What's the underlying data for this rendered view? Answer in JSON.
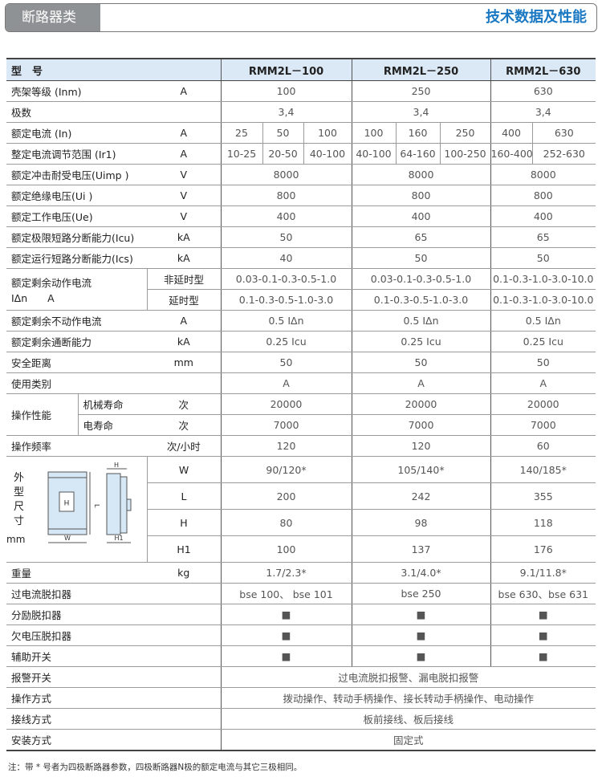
{
  "header": {
    "category": "断路器类",
    "title": "技术数据及性能"
  },
  "table": {
    "model_label": "型　号",
    "models": [
      "RMM2L－100",
      "RMM2L－250",
      "RMM2L－630"
    ],
    "rows": [
      {
        "label": "壳架等级 (Inm)",
        "unit": "A",
        "values": [
          "100",
          "250",
          "630"
        ]
      },
      {
        "label": "极数",
        "unit": "",
        "values": [
          "3,4",
          "3,4",
          "3,4"
        ]
      },
      {
        "label": "额定电流 (In)",
        "unit": "A",
        "values": [
          "25",
          "50",
          "100",
          "100",
          "160",
          "250",
          "400",
          "630"
        ]
      },
      {
        "label": "整定电流调节范围 (Ir1)",
        "unit": "A",
        "values": [
          "10-25",
          "20-50",
          "40-100",
          "40-100",
          "64-160",
          "100-250",
          "160-400",
          "252-630"
        ]
      },
      {
        "label": "额定冲击耐受电压(Uimp )",
        "unit": "V",
        "values": [
          "8000",
          "8000",
          "8000"
        ]
      },
      {
        "label": "额定绝缘电压(Ui )",
        "unit": "V",
        "values": [
          "800",
          "800",
          "800"
        ]
      },
      {
        "label": "额定工作电压(Ue)",
        "unit": "V",
        "values": [
          "400",
          "400",
          "400"
        ]
      },
      {
        "label": "额定极限短路分断能力(Icu)",
        "unit": "kA",
        "values": [
          "50",
          "65",
          "65"
        ]
      },
      {
        "label": "额定运行短路分断能力(Ics)",
        "unit": "kA",
        "values": [
          "40",
          "50",
          "50"
        ]
      },
      {
        "label": "额定剩余动作电流",
        "label2": "IΔn　　A",
        "sub": [
          {
            "label": "非延时型",
            "values": [
              "0.03-0.1-0.3-0.5-1.0",
              "0.03-0.1-0.3-0.5-1.0",
              "0.1-0.3-1.0-3.0-10.0"
            ]
          },
          {
            "label": "延时型",
            "values": [
              "0.1-0.3-0.5-1.0-3.0",
              "0.1-0.3-0.5-1.0-3.0",
              "0.1-0.3-1.0-3.0-10.0"
            ]
          }
        ]
      },
      {
        "label": "额定剩余不动作电流",
        "unit": "A",
        "values": [
          "0.5 IΔn",
          "0.5 IΔn",
          "0.5 IΔn"
        ]
      },
      {
        "label": "额定剩余通断能力",
        "unit": "kA",
        "values": [
          "0.25 Icu",
          "0.25 Icu",
          "0.25 Icu"
        ]
      },
      {
        "label": "安全距离",
        "unit": "mm",
        "values": [
          "50",
          "50",
          "50"
        ]
      },
      {
        "label": "使用类别",
        "unit": "",
        "values": [
          "A",
          "A",
          "A"
        ]
      },
      {
        "label": "操作性能",
        "life": [
          {
            "label": "机械寿命",
            "unit": "次",
            "values": [
              "20000",
              "20000",
              "20000"
            ]
          },
          {
            "label": "电寿命",
            "unit": "次",
            "values": [
              "7000",
              "7000",
              "7000"
            ]
          }
        ]
      },
      {
        "label": "操作频率",
        "unit": "次/小时",
        "values": [
          "120",
          "120",
          "60"
        ]
      },
      {
        "label": "外型尺寸",
        "label2": "mm",
        "drawing": {
          "w": "W",
          "l": "L",
          "h": "H",
          "h1": "H1",
          "face": "H"
        },
        "dims": [
          {
            "label": "W",
            "values": [
              "90/120*",
              "105/140*",
              "140/185*"
            ]
          },
          {
            "label": "L",
            "values": [
              "200",
              "242",
              "355"
            ]
          },
          {
            "label": "H",
            "values": [
              "80",
              "98",
              "118"
            ]
          },
          {
            "label": "H1",
            "values": [
              "100",
              "137",
              "176"
            ]
          }
        ]
      },
      {
        "label": "重量",
        "unit": "kg",
        "values": [
          "1.7/2.3*",
          "3.1/4.0*",
          "9.1/11.8*"
        ]
      },
      {
        "label": "过电流脱扣器",
        "unit": "",
        "values": [
          "bse 100、 bse 101",
          "bse 250",
          "bse 630、bse 631"
        ]
      },
      {
        "label": "分励脱扣器",
        "unit": "",
        "values": [
          "■",
          "■",
          "■"
        ]
      },
      {
        "label": "欠电压脱扣器",
        "unit": "",
        "values": [
          "■",
          "■",
          "■"
        ]
      },
      {
        "label": "辅助开关",
        "unit": "",
        "values": [
          "■",
          "■",
          "■"
        ]
      },
      {
        "label": "报警开关",
        "unit": "",
        "values": [
          "过电流脱扣报警、漏电脱扣报警"
        ]
      },
      {
        "label": "操作方式",
        "unit": "",
        "values": [
          "拨动操作、转动手柄操作、接长转动手柄操作、电动操作"
        ]
      },
      {
        "label": "接线方式",
        "unit": "",
        "values": [
          "板前接线、板后接线"
        ]
      },
      {
        "label": "安装方式",
        "unit": "",
        "values": [
          "固定式"
        ]
      }
    ]
  },
  "note": "注：带 * 号者为四极断路器参数，四极断路器N极的额定电流与其它三极相同。"
}
